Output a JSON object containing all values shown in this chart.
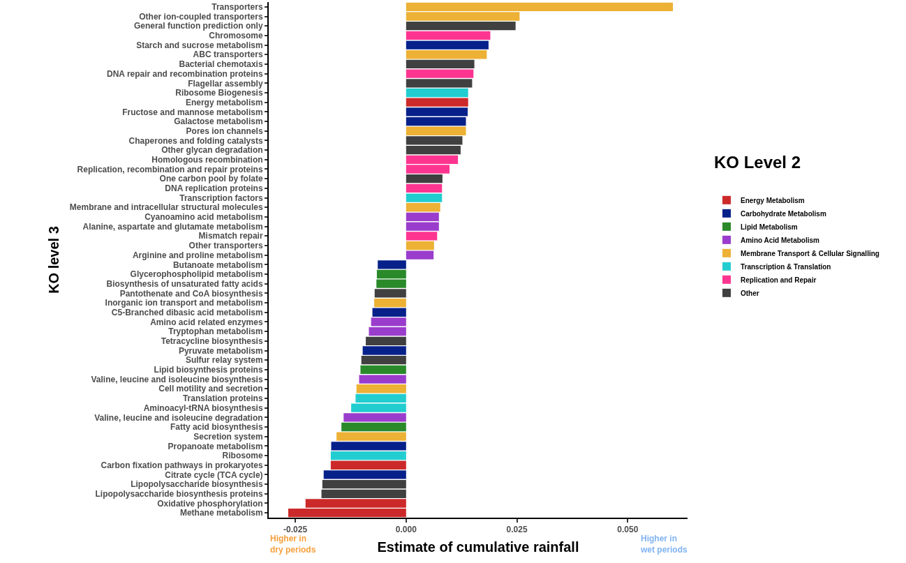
{
  "chart_data": {
    "type": "bar",
    "orientation": "horizontal",
    "xlabel": "Estimate of cumulative rainfall",
    "ylabel": "KO level 3",
    "legend_title": "KO Level 2",
    "legend": "right",
    "grid": false,
    "categories": [
      "Transporters",
      "Other ion-coupled transporters",
      "General function prediction only",
      "Chromosome",
      "Starch and sucrose metabolism",
      "ABC transporters",
      "Bacterial chemotaxis",
      "DNA repair and recombination proteins",
      "Flagellar assembly",
      "Ribosome Biogenesis",
      "Energy metabolism",
      "Fructose and mannose metabolism",
      "Galactose metabolism",
      "Pores ion channels",
      "Chaperones and folding catalysts",
      "Other glycan degradation",
      "Homologous recombination",
      "Replication, recombination and repair proteins",
      "One carbon pool by folate",
      "DNA replication proteins",
      "Transcription factors",
      "Membrane and intracellular structural molecules",
      "Cyanoamino acid metabolism",
      "Alanine, aspartate and glutamate metabolism",
      "Mismatch repair",
      "Other transporters",
      "Arginine and proline metabolism",
      "Butanoate metabolism",
      "Glycerophospholipid metabolism",
      "Biosynthesis of unsaturated fatty acids",
      "Pantothenate and CoA biosynthesis",
      "Inorganic ion transport and metabolism",
      "C5-Branched dibasic acid metabolism",
      "Amino acid related enzymes",
      "Tryptophan metabolism",
      "Tetracycline biosynthesis",
      "Pyruvate metabolism",
      "Sulfur relay system",
      "Lipid biosynthesis proteins",
      "Valine, leucine and isoleucine biosynthesis",
      "Cell motility and secretion",
      "Translation proteins",
      "Aminoacyl-tRNA biosynthesis",
      "Valine, leucine and isoleucine degradation",
      "Fatty acid biosynthesis",
      "Secretion system",
      "Propanoate metabolism",
      "Ribosome",
      "Carbon fixation pathways in prokaryotes",
      "Citrate cycle (TCA cycle)",
      "Lipopolysaccharide biosynthesis",
      "Lipopolysaccharide biosynthesis proteins",
      "Oxidative phosphorylation",
      "Methane metabolism"
    ],
    "series": [
      {
        "name": "Energy Metabolism",
        "color": "#cc2a2a",
        "values": [
          null,
          null,
          null,
          null,
          null,
          null,
          null,
          null,
          null,
          null,
          0.014,
          null,
          null,
          null,
          null,
          null,
          null,
          null,
          null,
          null,
          null,
          null,
          null,
          null,
          null,
          null,
          null,
          null,
          null,
          null,
          null,
          null,
          null,
          null,
          null,
          null,
          null,
          null,
          null,
          null,
          null,
          null,
          null,
          null,
          null,
          null,
          null,
          null,
          -0.017,
          null,
          null,
          null,
          -0.0227,
          -0.0266
        ]
      },
      {
        "name": "Carbohydrate Metabolism",
        "color": "#06218a",
        "values": [
          null,
          null,
          null,
          null,
          0.0186,
          null,
          null,
          null,
          null,
          null,
          null,
          0.0139,
          0.0135,
          null,
          null,
          null,
          null,
          null,
          null,
          null,
          null,
          null,
          null,
          null,
          null,
          null,
          null,
          -0.0064,
          null,
          null,
          null,
          null,
          -0.0076,
          null,
          null,
          null,
          -0.0098,
          null,
          null,
          null,
          null,
          null,
          null,
          null,
          null,
          null,
          -0.0169,
          null,
          null,
          -0.0186,
          null,
          null,
          null,
          null
        ]
      },
      {
        "name": "Lipid Metabolism",
        "color": "#2a8a2a",
        "values": [
          null,
          null,
          null,
          null,
          null,
          null,
          null,
          null,
          null,
          null,
          null,
          null,
          null,
          null,
          null,
          null,
          null,
          null,
          null,
          null,
          null,
          null,
          null,
          null,
          null,
          null,
          null,
          null,
          -0.0066,
          -0.0067,
          null,
          null,
          null,
          null,
          null,
          null,
          null,
          null,
          -0.0103,
          null,
          null,
          null,
          null,
          null,
          -0.0146,
          null,
          null,
          null,
          null,
          null,
          null,
          null,
          null,
          null
        ]
      },
      {
        "name": "Amino Acid Metabolism",
        "color": "#9a3dcc",
        "values": [
          null,
          null,
          null,
          null,
          null,
          null,
          null,
          null,
          null,
          null,
          null,
          null,
          null,
          null,
          null,
          null,
          null,
          null,
          null,
          null,
          null,
          null,
          0.0074,
          0.0074,
          null,
          null,
          0.0062,
          null,
          null,
          null,
          null,
          null,
          null,
          -0.0079,
          -0.0084,
          null,
          null,
          null,
          null,
          -0.0106,
          null,
          null,
          null,
          -0.0141,
          null,
          null,
          null,
          null,
          null,
          null,
          null,
          null,
          null,
          null
        ]
      },
      {
        "name": "Membrane Transport & Cellular Signalling",
        "color": "#ecb135",
        "values": [
          0.0602,
          0.0256,
          null,
          null,
          null,
          0.0182,
          null,
          null,
          null,
          null,
          null,
          null,
          null,
          0.0135,
          null,
          null,
          null,
          null,
          null,
          null,
          null,
          0.0077,
          null,
          null,
          null,
          0.0063,
          null,
          null,
          null,
          null,
          null,
          -0.0072,
          null,
          null,
          null,
          null,
          null,
          null,
          null,
          null,
          -0.0112,
          null,
          null,
          null,
          null,
          -0.0157,
          null,
          null,
          null,
          null,
          null,
          null,
          null,
          null
        ]
      },
      {
        "name": "Transcription & Translation",
        "color": "#22cdd0",
        "values": [
          null,
          null,
          null,
          null,
          null,
          null,
          null,
          null,
          null,
          0.014,
          null,
          null,
          null,
          null,
          null,
          null,
          null,
          null,
          null,
          null,
          0.0081,
          null,
          null,
          null,
          null,
          null,
          null,
          null,
          null,
          null,
          null,
          null,
          null,
          null,
          null,
          null,
          null,
          null,
          null,
          null,
          null,
          -0.0114,
          -0.0124,
          null,
          null,
          null,
          null,
          -0.017,
          null,
          null,
          null,
          null,
          null,
          null
        ]
      },
      {
        "name": "Replication and Repair",
        "color": "#fd3591",
        "values": [
          null,
          null,
          null,
          0.019,
          null,
          null,
          null,
          0.0152,
          null,
          null,
          null,
          null,
          null,
          null,
          null,
          null,
          0.0117,
          0.0098,
          null,
          0.0081,
          null,
          null,
          null,
          null,
          0.007,
          null,
          null,
          null,
          null,
          null,
          null,
          null,
          null,
          null,
          null,
          null,
          null,
          null,
          null,
          null,
          null,
          null,
          null,
          null,
          null,
          null,
          null,
          null,
          null,
          null,
          null,
          null,
          null,
          null
        ]
      },
      {
        "name": "Other",
        "color": "#404040",
        "values": [
          null,
          null,
          0.0247,
          null,
          null,
          null,
          0.0154,
          null,
          0.0149,
          null,
          null,
          null,
          null,
          null,
          0.0127,
          0.0123,
          null,
          null,
          0.0082,
          null,
          null,
          null,
          null,
          null,
          null,
          null,
          null,
          null,
          null,
          null,
          -0.0071,
          null,
          null,
          null,
          null,
          -0.0091,
          null,
          -0.0101,
          null,
          null,
          null,
          null,
          null,
          null,
          null,
          null,
          null,
          null,
          null,
          null,
          -0.0189,
          -0.0191,
          null,
          null
        ]
      }
    ],
    "xlim": [
      -0.031,
      0.0635
    ],
    "xticks": [
      {
        "value": -0.025,
        "label": "-0.025"
      },
      {
        "value": 0,
        "label": "0.000"
      },
      {
        "value": 0.025,
        "label": "0.025"
      },
      {
        "value": 0.05,
        "label": "0.050"
      }
    ],
    "annotations": [
      "Higher in\ndry periods",
      "Higher in\nwet periods"
    ]
  }
}
